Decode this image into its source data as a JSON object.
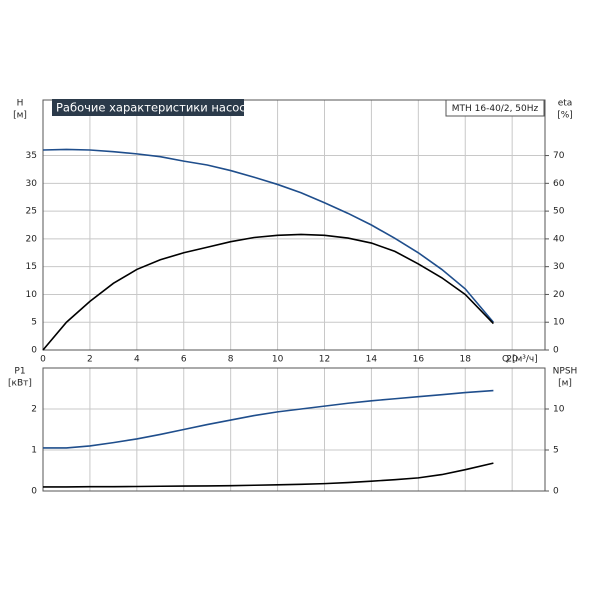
{
  "chart_data": [
    {
      "type": "line",
      "title": "Рабочие характеристики насоса",
      "subtitle": "MTH 16-40/2, 50Hz",
      "y_label": [
        "H",
        "[м]"
      ],
      "y2_label": [
        "eta",
        "[%]"
      ],
      "x_label": "Q [м³/ч]",
      "x": [
        0,
        1,
        2,
        3,
        4,
        5,
        6,
        7,
        8,
        9,
        10,
        11,
        12,
        13,
        14,
        15,
        16,
        17,
        18,
        19.2
      ],
      "xlim": [
        0,
        21.4
      ],
      "xticks": [
        0,
        2,
        4,
        6,
        8,
        10,
        12,
        14,
        16,
        18,
        20
      ],
      "ylim": [
        0,
        45
      ],
      "yticks": [
        0,
        5,
        10,
        15,
        20,
        25,
        30,
        35
      ],
      "y2lim": [
        0,
        90
      ],
      "y2ticks": [
        0,
        10,
        20,
        30,
        40,
        50,
        60,
        70
      ],
      "grid": true,
      "series": [
        {
          "color": "#1f4e8c",
          "values": [
            36,
            36.1,
            36,
            35.7,
            35.3,
            34.8,
            34,
            33.3,
            32.3,
            31.1,
            29.8,
            28.3,
            26.5,
            24.6,
            22.5,
            20.1,
            17.5,
            14.5,
            11,
            5
          ]
        },
        {
          "color": "#000000",
          "axis": "y2",
          "values": [
            0,
            10,
            17.5,
            24,
            29,
            32.5,
            35,
            37,
            39,
            40.5,
            41.3,
            41.6,
            41.3,
            40.3,
            38.5,
            35.5,
            31,
            26,
            20,
            9.5
          ]
        }
      ]
    },
    {
      "type": "line",
      "y_label": [
        "P1",
        "[кВт]"
      ],
      "y2_label": [
        "NPSH",
        "[м]"
      ],
      "x": [
        0,
        1,
        2,
        3,
        4,
        5,
        6,
        7,
        8,
        9,
        10,
        11,
        12,
        13,
        14,
        15,
        16,
        17,
        18,
        19.2
      ],
      "xlim": [
        0,
        21.4
      ],
      "xticks": [
        0,
        2,
        4,
        6,
        8,
        10,
        12,
        14,
        16,
        18,
        20
      ],
      "ylim": [
        0,
        3
      ],
      "yticks": [
        0,
        1,
        2
      ],
      "y2lim": [
        0,
        15
      ],
      "y2ticks": [
        0,
        5,
        10
      ],
      "grid": true,
      "series": [
        {
          "color": "#1f4e8c",
          "values": [
            1.05,
            1.05,
            1.1,
            1.18,
            1.27,
            1.38,
            1.5,
            1.62,
            1.73,
            1.84,
            1.93,
            2.0,
            2.07,
            2.14,
            2.2,
            2.25,
            2.3,
            2.35,
            2.4,
            2.45
          ]
        },
        {
          "color": "#000000",
          "axis": "y2",
          "values": [
            0.5,
            0.5,
            0.52,
            0.53,
            0.55,
            0.58,
            0.6,
            0.62,
            0.65,
            0.7,
            0.75,
            0.82,
            0.9,
            1.03,
            1.2,
            1.38,
            1.6,
            2.0,
            2.6,
            3.4
          ]
        }
      ]
    }
  ]
}
